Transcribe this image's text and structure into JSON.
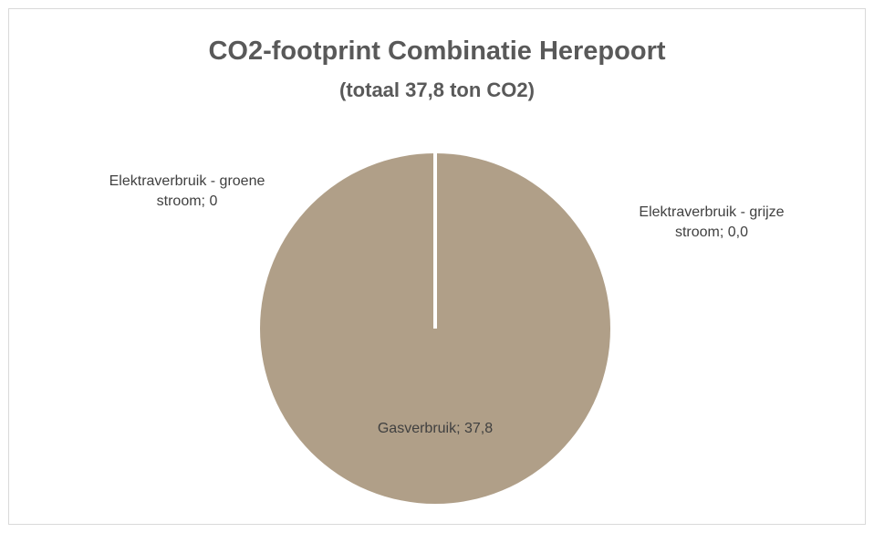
{
  "chart_data": {
    "type": "pie",
    "title": "CO2-footprint Combinatie Herepoort",
    "subtitle": "(totaal 37,8 ton CO2)",
    "values": [
      0,
      0.0,
      37.8
    ],
    "value_labels": [
      "Elektraverbruik - groene stroom; 0",
      "Elektraverbruik - grijze stroom; 0,0",
      "Gasverbruik; 37,8"
    ],
    "color": "#b09f88",
    "border_color": "#ffffff"
  }
}
